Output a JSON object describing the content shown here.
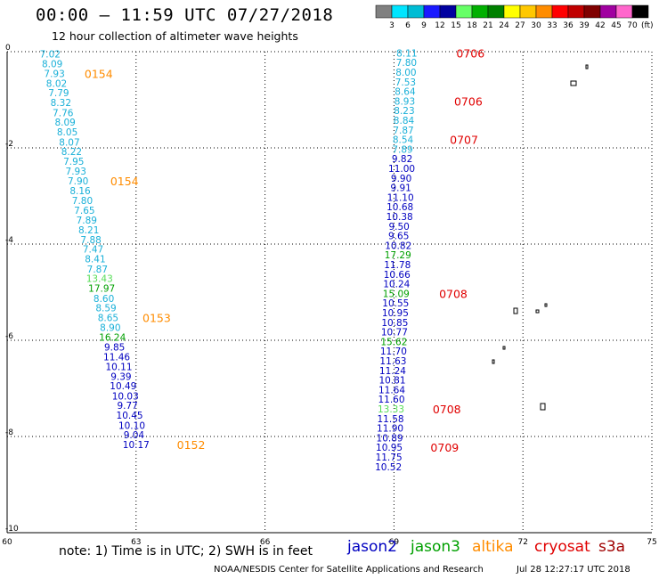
{
  "header": {
    "title": "00:00 – 11:59 UTC 07/27/2018",
    "subtitle": "12 hour collection of altimeter wave heights"
  },
  "colorbar": {
    "labels": [
      "3",
      "6",
      "9",
      "12",
      "15",
      "18",
      "21",
      "24",
      "27",
      "30",
      "33",
      "36",
      "39",
      "42",
      "45",
      "70"
    ],
    "unit": "(ft)",
    "colors": [
      "#808080",
      "#00e5ff",
      "#00bcd4",
      "#1a1aff",
      "#0000a0",
      "#66ff66",
      "#00b000",
      "#008000",
      "#ffff00",
      "#ffc800",
      "#ff8c00",
      "#ff0000",
      "#c00000",
      "#800000",
      "#a000a0",
      "#ff66cc",
      "#000000"
    ]
  },
  "note": "note:  1) Time is in UTC;  2) SWH is in feet",
  "legend": [
    {
      "name": "jason2",
      "color": "#0000c0"
    },
    {
      "name": "jason3",
      "color": "#00a000"
    },
    {
      "name": "altika",
      "color": "#ff8c00"
    },
    {
      "name": "cryosat",
      "color": "#e00000"
    },
    {
      "name": "s3a",
      "color": "#a00000"
    }
  ],
  "footer": {
    "credit": "NOAA/NESDIS Center for Satellite Applications and Research",
    "timestamp": "Jul 28 12:27:17 UTC 2018"
  },
  "chart_data": {
    "type": "scatter",
    "xlim": [
      60,
      75
    ],
    "ylim": [
      -10,
      0
    ],
    "x_ticks": [
      60,
      63,
      66,
      69,
      72,
      75
    ],
    "y_ticks": [
      0,
      -2,
      -4,
      -6,
      -8,
      -10
    ],
    "grid": true,
    "track1": {
      "points": [
        {
          "x": 61.0,
          "y": -0.12,
          "v": "7.02",
          "c": "c"
        },
        {
          "x": 61.05,
          "y": -0.32,
          "v": "8.09",
          "c": "c"
        },
        {
          "x": 61.1,
          "y": -0.53,
          "v": "7.93",
          "c": "c"
        },
        {
          "x": 61.15,
          "y": -0.73,
          "v": "8.02",
          "c": "c"
        },
        {
          "x": 61.2,
          "y": -0.93,
          "v": "7.79",
          "c": "c"
        },
        {
          "x": 61.25,
          "y": -1.13,
          "v": "8.32",
          "c": "c"
        },
        {
          "x": 61.3,
          "y": -1.34,
          "v": "7.76",
          "c": "c"
        },
        {
          "x": 61.35,
          "y": -1.54,
          "v": "8.09",
          "c": "c"
        },
        {
          "x": 61.4,
          "y": -1.74,
          "v": "8.05",
          "c": "c"
        },
        {
          "x": 61.45,
          "y": -1.95,
          "v": "8.07",
          "c": "c"
        },
        {
          "x": 61.5,
          "y": -2.15,
          "v": "8.22",
          "c": "c"
        },
        {
          "x": 61.55,
          "y": -2.35,
          "v": "7.95",
          "c": "c"
        },
        {
          "x": 61.6,
          "y": -2.56,
          "v": "7.93",
          "c": "c"
        },
        {
          "x": 61.65,
          "y": -2.76,
          "v": "7.90",
          "c": "c"
        },
        {
          "x": 61.7,
          "y": -2.96,
          "v": "8.16",
          "c": "c"
        },
        {
          "x": 61.75,
          "y": -3.17,
          "v": "7.80",
          "c": "c"
        },
        {
          "x": 61.8,
          "y": -3.37,
          "v": "7.65",
          "c": "c"
        },
        {
          "x": 61.85,
          "y": -3.57,
          "v": "7.89",
          "c": "c"
        },
        {
          "x": 61.9,
          "y": -3.78,
          "v": "8.21",
          "c": "c"
        },
        {
          "x": 61.95,
          "y": -3.98,
          "v": "7.88",
          "c": "c"
        },
        {
          "x": 62.0,
          "y": -4.18,
          "v": "7.47",
          "c": "c"
        },
        {
          "x": 62.05,
          "y": -4.38,
          "v": "8.41",
          "c": "c"
        },
        {
          "x": 62.1,
          "y": -4.59,
          "v": "7.87",
          "c": "c"
        },
        {
          "x": 62.15,
          "y": -4.79,
          "v": "13.43",
          "c": "lg"
        },
        {
          "x": 62.2,
          "y": -4.99,
          "v": "17.97",
          "c": "g"
        },
        {
          "x": 62.25,
          "y": -5.2,
          "v": "8.60",
          "c": "c"
        },
        {
          "x": 62.3,
          "y": -5.4,
          "v": "8.59",
          "c": "c"
        },
        {
          "x": 62.35,
          "y": -5.6,
          "v": "8.65",
          "c": "c"
        },
        {
          "x": 62.4,
          "y": -5.81,
          "v": "8.90",
          "c": "c"
        },
        {
          "x": 62.45,
          "y": -6.01,
          "v": "16.24",
          "c": "g"
        },
        {
          "x": 62.5,
          "y": -6.21,
          "v": "9.85",
          "c": "b"
        },
        {
          "x": 62.55,
          "y": -6.42,
          "v": "11.46",
          "c": "b"
        },
        {
          "x": 62.6,
          "y": -6.62,
          "v": "10.11",
          "c": "b"
        },
        {
          "x": 62.65,
          "y": -6.82,
          "v": "9.39",
          "c": "b"
        },
        {
          "x": 62.7,
          "y": -7.02,
          "v": "10.49",
          "c": "b"
        },
        {
          "x": 62.75,
          "y": -7.23,
          "v": "10.03",
          "c": "b"
        },
        {
          "x": 62.8,
          "y": -7.43,
          "v": "9.77",
          "c": "b"
        },
        {
          "x": 62.85,
          "y": -7.63,
          "v": "10.45",
          "c": "b"
        },
        {
          "x": 62.9,
          "y": -7.84,
          "v": "10.10",
          "c": "b"
        },
        {
          "x": 62.95,
          "y": -8.04,
          "v": "9.04",
          "c": "b"
        },
        {
          "x": 63.0,
          "y": -8.24,
          "v": "10.17",
          "c": "b"
        }
      ],
      "time_labels": [
        {
          "text": "0154",
          "x": 61.8,
          "y": -0.53
        },
        {
          "text": "0154",
          "x": 62.4,
          "y": -2.76
        },
        {
          "text": "0153",
          "x": 63.15,
          "y": -5.6
        },
        {
          "text": "0152",
          "x": 63.95,
          "y": -8.24
        }
      ]
    },
    "track2": {
      "points": [
        {
          "x": 69.3,
          "y": -0.1,
          "v": "8.11",
          "c": "c"
        },
        {
          "x": 69.29,
          "y": -0.3,
          "v": "7.80",
          "c": "c"
        },
        {
          "x": 69.28,
          "y": -0.5,
          "v": "8.00",
          "c": "c"
        },
        {
          "x": 69.27,
          "y": -0.7,
          "v": "7.53",
          "c": "c"
        },
        {
          "x": 69.26,
          "y": -0.9,
          "v": "8.64",
          "c": "c"
        },
        {
          "x": 69.25,
          "y": -1.1,
          "v": "8.93",
          "c": "c"
        },
        {
          "x": 69.24,
          "y": -1.3,
          "v": "8.23",
          "c": "c"
        },
        {
          "x": 69.23,
          "y": -1.5,
          "v": "8.84",
          "c": "c"
        },
        {
          "x": 69.22,
          "y": -1.7,
          "v": "7.87",
          "c": "c"
        },
        {
          "x": 69.21,
          "y": -1.9,
          "v": "8.54",
          "c": "c"
        },
        {
          "x": 69.2,
          "y": -2.1,
          "v": "7.89",
          "c": "c"
        },
        {
          "x": 69.19,
          "y": -2.3,
          "v": "9.82",
          "c": "b"
        },
        {
          "x": 69.18,
          "y": -2.5,
          "v": "11.00",
          "c": "b"
        },
        {
          "x": 69.17,
          "y": -2.7,
          "v": "9.90",
          "c": "b"
        },
        {
          "x": 69.16,
          "y": -2.9,
          "v": "9.91",
          "c": "b"
        },
        {
          "x": 69.15,
          "y": -3.1,
          "v": "11.10",
          "c": "b"
        },
        {
          "x": 69.14,
          "y": -3.3,
          "v": "10.68",
          "c": "b"
        },
        {
          "x": 69.13,
          "y": -3.5,
          "v": "10.38",
          "c": "b"
        },
        {
          "x": 69.12,
          "y": -3.7,
          "v": "9.50",
          "c": "b"
        },
        {
          "x": 69.11,
          "y": -3.9,
          "v": "9.65",
          "c": "b"
        },
        {
          "x": 69.1,
          "y": -4.1,
          "v": "10.82",
          "c": "b"
        },
        {
          "x": 69.09,
          "y": -4.3,
          "v": "17.29",
          "c": "g"
        },
        {
          "x": 69.08,
          "y": -4.5,
          "v": "11.78",
          "c": "b"
        },
        {
          "x": 69.07,
          "y": -4.7,
          "v": "10.66",
          "c": "b"
        },
        {
          "x": 69.06,
          "y": -4.9,
          "v": "10.24",
          "c": "b"
        },
        {
          "x": 69.05,
          "y": -5.1,
          "v": "15.09",
          "c": "g"
        },
        {
          "x": 69.04,
          "y": -5.3,
          "v": "10.55",
          "c": "b"
        },
        {
          "x": 69.03,
          "y": -5.5,
          "v": "10.95",
          "c": "b"
        },
        {
          "x": 69.02,
          "y": -5.7,
          "v": "10.85",
          "c": "b"
        },
        {
          "x": 69.01,
          "y": -5.9,
          "v": "10.77",
          "c": "b"
        },
        {
          "x": 69.0,
          "y": -6.1,
          "v": "15.62",
          "c": "g"
        },
        {
          "x": 68.99,
          "y": -6.3,
          "v": "11.70",
          "c": "b"
        },
        {
          "x": 68.98,
          "y": -6.5,
          "v": "11.63",
          "c": "b"
        },
        {
          "x": 68.97,
          "y": -6.7,
          "v": "11.24",
          "c": "b"
        },
        {
          "x": 68.96,
          "y": -6.9,
          "v": "10.81",
          "c": "b"
        },
        {
          "x": 68.95,
          "y": -7.1,
          "v": "11.64",
          "c": "b"
        },
        {
          "x": 68.94,
          "y": -7.3,
          "v": "11.60",
          "c": "b"
        },
        {
          "x": 68.93,
          "y": -7.5,
          "v": "13.33",
          "c": "lg"
        },
        {
          "x": 68.92,
          "y": -7.7,
          "v": "11.58",
          "c": "b"
        },
        {
          "x": 68.91,
          "y": -7.9,
          "v": "11.90",
          "c": "b"
        },
        {
          "x": 68.9,
          "y": -8.1,
          "v": "10.89",
          "c": "b"
        },
        {
          "x": 68.89,
          "y": -8.3,
          "v": "10.95",
          "c": "b"
        },
        {
          "x": 68.88,
          "y": -8.5,
          "v": "11.75",
          "c": "b"
        },
        {
          "x": 68.87,
          "y": -8.7,
          "v": "10.52",
          "c": "b"
        }
      ],
      "time_labels": [
        {
          "text": "0706",
          "x": 70.45,
          "y": -0.1
        },
        {
          "text": "0706",
          "x": 70.4,
          "y": -1.1
        },
        {
          "text": "0707",
          "x": 70.3,
          "y": -1.9
        },
        {
          "text": "0708",
          "x": 70.05,
          "y": -5.1
        },
        {
          "text": "0708",
          "x": 69.9,
          "y": -7.5
        },
        {
          "text": "0709",
          "x": 69.85,
          "y": -8.3
        }
      ]
    }
  }
}
